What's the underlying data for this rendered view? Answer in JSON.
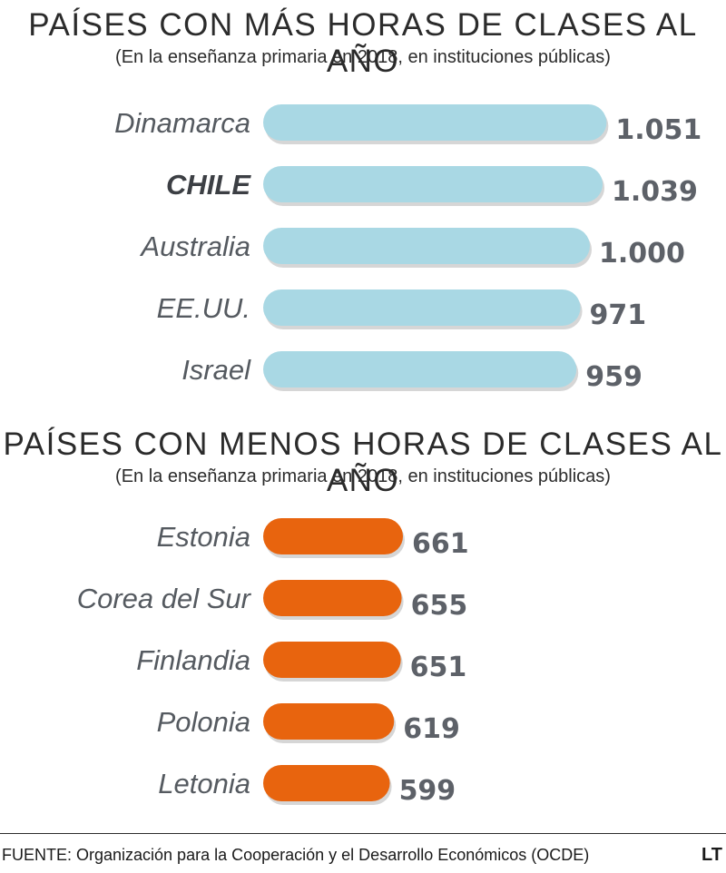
{
  "chart_data": [
    {
      "type": "bar",
      "orientation": "horizontal",
      "title": "PAÍSES CON MÁS HORAS DE CLASES AL AÑO",
      "subtitle": "(En la enseñanza primaria en 2018, en instituciones públicas)",
      "categories": [
        "Dinamarca",
        "CHILE",
        "Australia",
        "EE.UU.",
        "Israel"
      ],
      "values": [
        1051,
        1039,
        1000,
        971,
        959
      ],
      "value_labels": [
        "1.051",
        "1.039",
        "1.000",
        "971",
        "959"
      ],
      "highlight": "CHILE",
      "color": "#a9d8e4",
      "grid": false
    },
    {
      "type": "bar",
      "orientation": "horizontal",
      "title": "PAÍSES CON MENOS HORAS DE CLASES AL AÑO",
      "subtitle": "(En la enseñanza primaria en 2018, en instituciones públicas)",
      "categories": [
        "Estonia",
        "Corea del Sur",
        "Finlandia",
        "Polonia",
        "Letonia"
      ],
      "values": [
        661,
        655,
        651,
        619,
        599
      ],
      "value_labels": [
        "661",
        "655",
        "651",
        "619",
        "599"
      ],
      "color": "#e8640e",
      "grid": false
    }
  ],
  "footer": {
    "source": "FUENTE: Organización para la Cooperación y el Desarrollo Económicos (OCDE)",
    "logo": "LT"
  }
}
